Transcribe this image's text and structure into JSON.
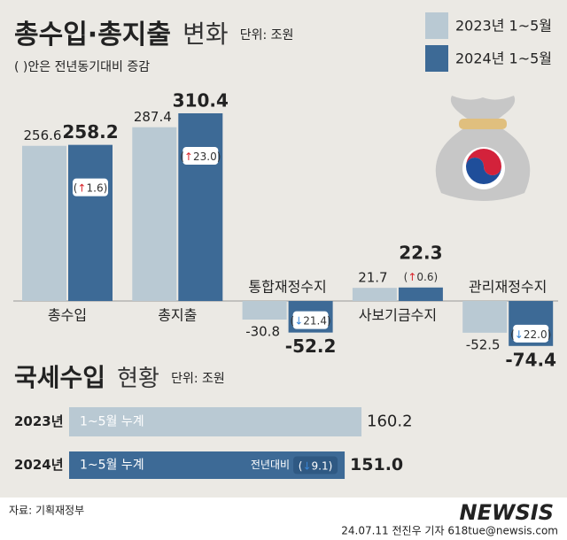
{
  "chart_data": [
    {
      "type": "grouped-bar",
      "title": "총수입·총지출",
      "title_sub": "변화",
      "unit": "단위: 조원",
      "note": "( )안은 전년동기대비 증감",
      "categories": [
        "총수입",
        "총지출",
        "통합재정수지",
        "사보기금수지",
        "관리재정수지"
      ],
      "series": [
        {
          "name": "2023년 1~5월",
          "color": "#b9c9d3",
          "values": [
            256.6,
            287.4,
            -30.8,
            21.7,
            -52.5
          ]
        },
        {
          "name": "2024년 1~5월",
          "color": "#3d6a96",
          "values": [
            258.2,
            310.4,
            -52.2,
            22.3,
            -74.4
          ]
        }
      ],
      "change": {
        "values": [
          1.6,
          23,
          21.4,
          0.6,
          22
        ],
        "value_labels": [
          "(↑1.6)",
          "(↑23.0)",
          "(↓21.4)",
          "(↑0.6)",
          "(↓22.0)"
        ],
        "directions": [
          "up",
          "up",
          "down",
          "up",
          "down"
        ]
      }
    },
    {
      "type": "hbar",
      "title": "국세수입",
      "title_sub": "현황",
      "unit": "단위: 조원",
      "categories": [
        "2023년",
        "2024년"
      ],
      "bar_labels": [
        "1~5월 누계",
        "1~5월 누계"
      ],
      "colors": [
        "#b9c9d3",
        "#3d6a96"
      ],
      "values": [
        160.2,
        151
      ],
      "value_labels": [
        "160.2",
        "151.0"
      ],
      "change": {
        "text": "전년대비",
        "value": 9.1,
        "value_label": "(↓9.1)",
        "direction": "down"
      }
    }
  ],
  "source": "자료: 기획재정부",
  "credit": "24.07.11 전진우 기자 618tue@newsis.com",
  "logo": "NEWSIS"
}
